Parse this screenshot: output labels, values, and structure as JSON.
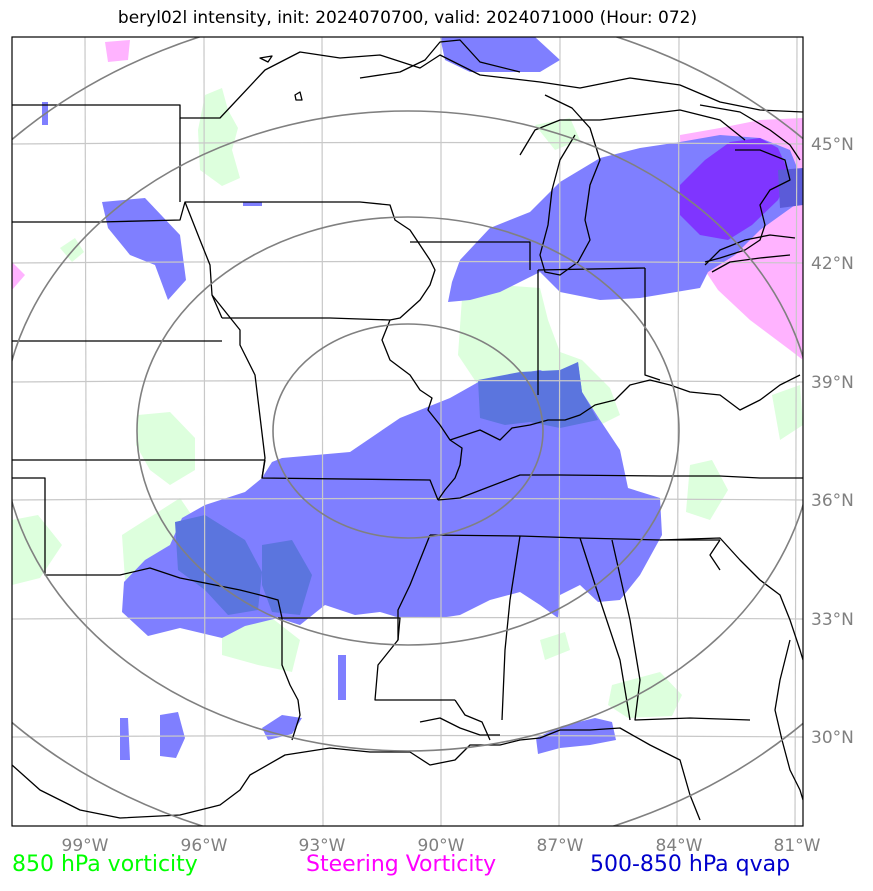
{
  "title": "beryl02l intensity, init: 2024070700, valid: 2024071000 (Hour: 072)",
  "lon_labels": [
    "99°W",
    "96°W",
    "93°W",
    "90°W",
    "87°W",
    "84°W",
    "81°W"
  ],
  "lat_labels": [
    "45°N",
    "42°N",
    "39°N",
    "36°N",
    "33°N",
    "30°N"
  ],
  "legend": [
    {
      "label": "850 hPa vorticity",
      "color": "#00ff00"
    },
    {
      "label": "Steering Vorticity",
      "color": "#ff00ff"
    },
    {
      "label": "500-850 hPa qvap",
      "color": "#0000cc"
    }
  ],
  "colors": {
    "vorticity_fill": "#ddffdd",
    "qvap_fill": "#7f7fff",
    "steering_fill": "#ffb3ff",
    "range_rings": "#808080",
    "gridlines": "#c8c8c8",
    "borders": "#000000"
  }
}
